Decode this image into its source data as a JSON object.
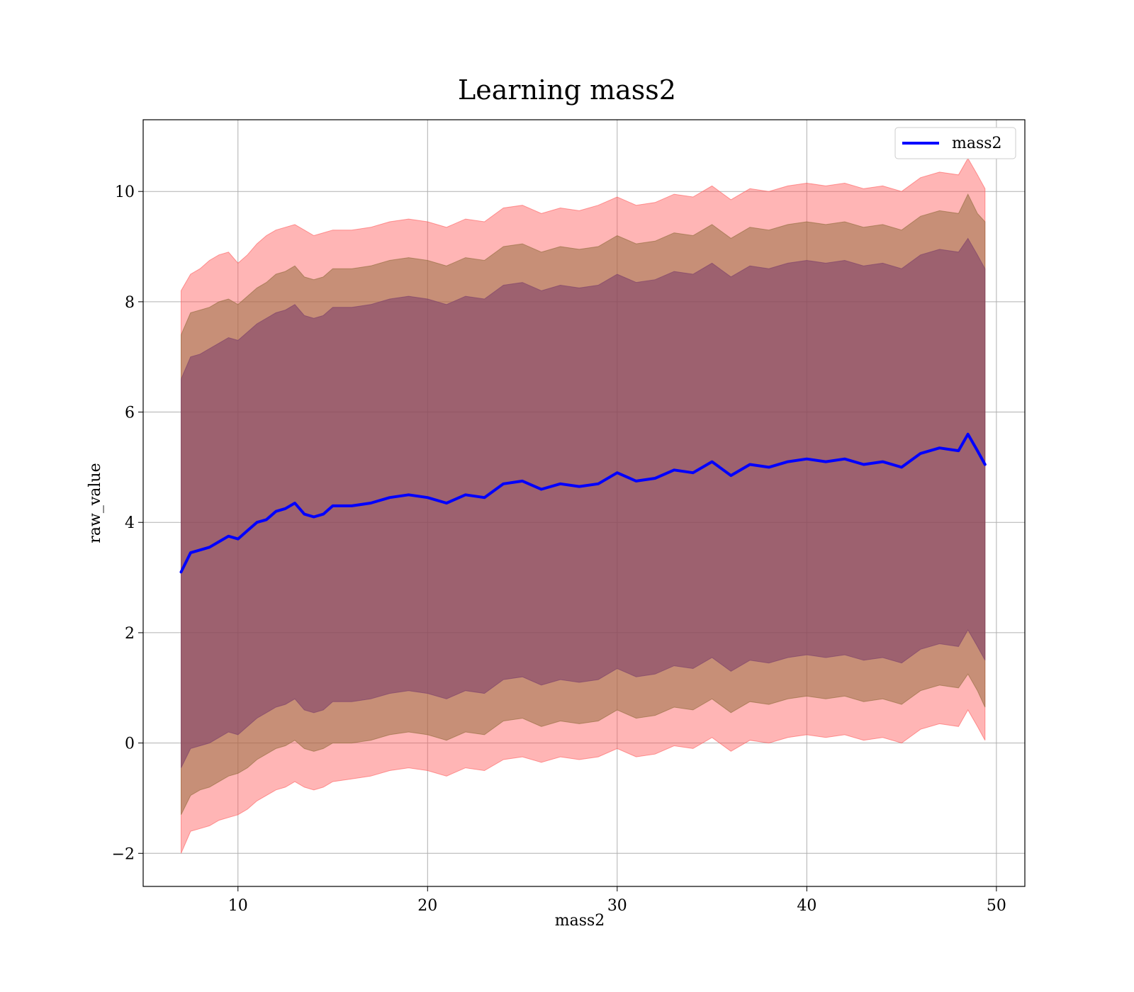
{
  "chart_data": {
    "type": "line",
    "title": "Learning mass2",
    "xlabel": "mass2",
    "ylabel": "raw_value",
    "xlim": [
      5,
      51.5
    ],
    "ylim": [
      -2.6,
      11.3
    ],
    "xticks": [
      10,
      20,
      30,
      40,
      50
    ],
    "yticks": [
      -2,
      0,
      2,
      4,
      6,
      8,
      10
    ],
    "xtick_labels": [
      "10",
      "20",
      "30",
      "40",
      "50"
    ],
    "ytick_labels": [
      "−2",
      "0",
      "2",
      "4",
      "6",
      "8",
      "10"
    ],
    "grid": true,
    "legend": {
      "position": "top-right",
      "entries": [
        "mass2"
      ]
    },
    "colors": {
      "line": "#0000ff",
      "band_outer": "#ff5a5a",
      "band_middle": "#8f6a3a",
      "band_inner": "#7a3d6a",
      "grid": "#b0b0b0",
      "axis": "#000000"
    },
    "x": [
      7,
      7.5,
      8,
      8.5,
      9,
      9.5,
      10,
      10.5,
      11,
      11.5,
      12,
      12.5,
      13,
      13.5,
      14,
      14.5,
      15,
      16,
      17,
      18,
      19,
      20,
      21,
      22,
      23,
      24,
      25,
      26,
      27,
      28,
      29,
      30,
      31,
      32,
      33,
      34,
      35,
      36,
      37,
      38,
      39,
      40,
      41,
      42,
      43,
      44,
      45,
      46,
      47,
      48,
      48.5,
      49,
      49.4
    ],
    "series": [
      {
        "name": "mass2",
        "values": [
          3.1,
          3.45,
          3.5,
          3.55,
          3.65,
          3.75,
          3.7,
          3.85,
          4.0,
          4.05,
          4.2,
          4.25,
          4.35,
          4.15,
          4.1,
          4.15,
          4.3,
          4.3,
          4.35,
          4.45,
          4.5,
          4.45,
          4.35,
          4.5,
          4.45,
          4.7,
          4.75,
          4.6,
          4.7,
          4.65,
          4.7,
          4.9,
          4.75,
          4.8,
          4.95,
          4.9,
          5.1,
          4.85,
          5.05,
          5.0,
          5.1,
          5.15,
          5.1,
          5.15,
          5.05,
          5.1,
          5.0,
          5.25,
          5.35,
          5.3,
          5.6,
          5.3,
          5.05
        ]
      }
    ],
    "bands": [
      {
        "level": "outer",
        "upper": [
          8.2,
          8.5,
          8.6,
          8.75,
          8.85,
          8.9,
          8.7,
          8.85,
          9.05,
          9.2,
          9.3,
          9.35,
          9.4,
          9.3,
          9.2,
          9.25,
          9.3,
          9.3,
          9.35,
          9.45,
          9.5,
          9.45,
          9.35,
          9.5,
          9.45,
          9.7,
          9.75,
          9.6,
          9.7,
          9.65,
          9.75,
          9.9,
          9.75,
          9.8,
          9.95,
          9.9,
          10.1,
          9.85,
          10.05,
          10.0,
          10.1,
          10.15,
          10.1,
          10.15,
          10.05,
          10.1,
          10.0,
          10.25,
          10.35,
          10.3,
          10.6,
          10.3,
          10.05
        ],
        "lower": [
          -2.0,
          -1.6,
          -1.55,
          -1.5,
          -1.4,
          -1.35,
          -1.3,
          -1.2,
          -1.05,
          -0.95,
          -0.85,
          -0.8,
          -0.7,
          -0.8,
          -0.85,
          -0.8,
          -0.7,
          -0.65,
          -0.6,
          -0.5,
          -0.45,
          -0.5,
          -0.6,
          -0.45,
          -0.5,
          -0.3,
          -0.25,
          -0.35,
          -0.25,
          -0.3,
          -0.25,
          -0.1,
          -0.25,
          -0.2,
          -0.05,
          -0.1,
          0.1,
          -0.15,
          0.05,
          0.0,
          0.1,
          0.15,
          0.1,
          0.15,
          0.05,
          0.1,
          0.0,
          0.25,
          0.35,
          0.3,
          0.6,
          0.3,
          0.05
        ]
      },
      {
        "level": "middle",
        "upper": [
          7.4,
          7.8,
          7.85,
          7.9,
          8.0,
          8.05,
          7.95,
          8.1,
          8.25,
          8.35,
          8.5,
          8.55,
          8.65,
          8.45,
          8.4,
          8.45,
          8.6,
          8.6,
          8.65,
          8.75,
          8.8,
          8.75,
          8.65,
          8.8,
          8.75,
          9.0,
          9.05,
          8.9,
          9.0,
          8.95,
          9.0,
          9.2,
          9.05,
          9.1,
          9.25,
          9.2,
          9.4,
          9.15,
          9.35,
          9.3,
          9.4,
          9.45,
          9.4,
          9.45,
          9.35,
          9.4,
          9.3,
          9.55,
          9.65,
          9.6,
          9.95,
          9.6,
          9.45
        ],
        "lower": [
          -1.3,
          -0.95,
          -0.85,
          -0.8,
          -0.7,
          -0.6,
          -0.55,
          -0.45,
          -0.3,
          -0.2,
          -0.1,
          -0.05,
          0.05,
          -0.1,
          -0.15,
          -0.1,
          0.0,
          0.0,
          0.05,
          0.15,
          0.2,
          0.15,
          0.05,
          0.2,
          0.15,
          0.4,
          0.45,
          0.3,
          0.4,
          0.35,
          0.4,
          0.6,
          0.45,
          0.5,
          0.65,
          0.6,
          0.8,
          0.55,
          0.75,
          0.7,
          0.8,
          0.85,
          0.8,
          0.85,
          0.75,
          0.8,
          0.7,
          0.95,
          1.05,
          1.0,
          1.25,
          0.95,
          0.65
        ]
      },
      {
        "level": "inner",
        "upper": [
          6.6,
          7.0,
          7.05,
          7.15,
          7.25,
          7.35,
          7.3,
          7.45,
          7.6,
          7.7,
          7.8,
          7.85,
          7.95,
          7.75,
          7.7,
          7.75,
          7.9,
          7.9,
          7.95,
          8.05,
          8.1,
          8.05,
          7.95,
          8.1,
          8.05,
          8.3,
          8.35,
          8.2,
          8.3,
          8.25,
          8.3,
          8.5,
          8.35,
          8.4,
          8.55,
          8.5,
          8.7,
          8.45,
          8.65,
          8.6,
          8.7,
          8.75,
          8.7,
          8.75,
          8.65,
          8.7,
          8.6,
          8.85,
          8.95,
          8.9,
          9.15,
          8.85,
          8.6
        ],
        "lower": [
          -0.45,
          -0.1,
          -0.05,
          0.0,
          0.1,
          0.2,
          0.15,
          0.3,
          0.45,
          0.55,
          0.65,
          0.7,
          0.8,
          0.6,
          0.55,
          0.6,
          0.75,
          0.75,
          0.8,
          0.9,
          0.95,
          0.9,
          0.8,
          0.95,
          0.9,
          1.15,
          1.2,
          1.05,
          1.15,
          1.1,
          1.15,
          1.35,
          1.2,
          1.25,
          1.4,
          1.35,
          1.55,
          1.3,
          1.5,
          1.45,
          1.55,
          1.6,
          1.55,
          1.6,
          1.5,
          1.55,
          1.45,
          1.7,
          1.8,
          1.75,
          2.05,
          1.75,
          1.5
        ]
      }
    ]
  }
}
